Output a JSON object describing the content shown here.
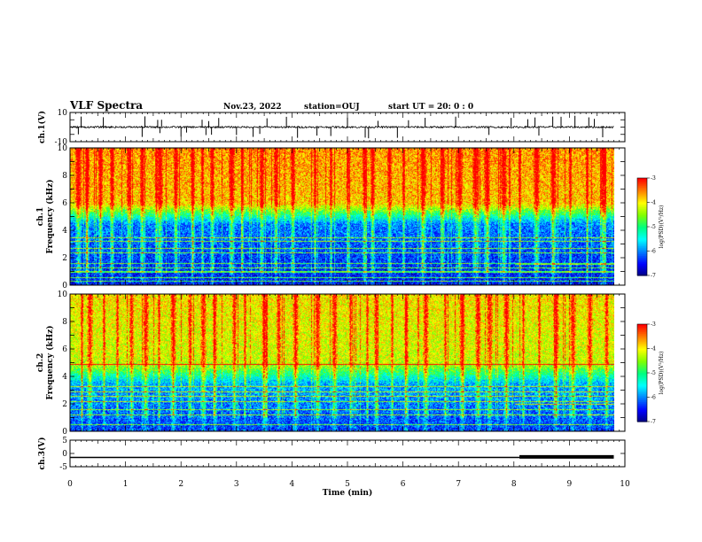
{
  "header": {
    "title": "VLF Spectra",
    "date": "Nov.23, 2022",
    "station": "station=OUJ",
    "start_ut_label": "start  UT =",
    "start_ut_value": "20: 0  : 0"
  },
  "colors": {
    "colormap": [
      "#000080",
      "#0000ff",
      "#0080ff",
      "#00ffff",
      "#00ff80",
      "#80ff00",
      "#ffff00",
      "#ff8000",
      "#ff0000",
      "#ffffff"
    ],
    "trace": "#000000"
  },
  "chart_data": [
    {
      "type": "line",
      "panel": "ch1-waveform",
      "ylabel": "ch.1(V)",
      "ylim": [
        -10,
        10
      ],
      "yticks": [
        "10",
        "-10"
      ],
      "xlim": [
        0,
        10
      ],
      "series": [
        {
          "description_units": "volts",
          "baseline": 0,
          "noise_amplitude": 1.2,
          "spikes_min": [
            0.15,
            0.2,
            0.6,
            1.3,
            1.35,
            1.58,
            1.62,
            1.65,
            2.0,
            2.1,
            2.38,
            2.45,
            2.5,
            2.55,
            2.68,
            3.0,
            3.3,
            3.42,
            3.55,
            3.9,
            4.1,
            4.45,
            4.7,
            5.0,
            5.32,
            5.38,
            5.55,
            5.9,
            6.1,
            6.4,
            6.95,
            7.55,
            7.95,
            8.25,
            8.38,
            8.45,
            8.7,
            8.85,
            9.1,
            9.35,
            9.45,
            9.6
          ],
          "spike_amplitude": 8
        }
      ]
    },
    {
      "type": "heatmap",
      "panel": "ch1-spectrogram",
      "ylabel_top": "ch.1",
      "ylabel": "Frequency  (kHz)",
      "ylim": [
        0,
        10
      ],
      "yticks": [
        "0",
        "2",
        "4",
        "6",
        "8",
        "10"
      ],
      "xlim": [
        0,
        10
      ],
      "value_units": "log(PSD)",
      "color_range": [
        -7,
        -3
      ],
      "structure": {
        "low_band_khz": [
          0,
          4.5
        ],
        "low_band_log_psd": -6.5,
        "high_band_khz": [
          6,
          10
        ],
        "high_band_log_psd": -3.8,
        "line_freqs_khz": [
          0.3,
          0.6,
          1.0,
          1.3,
          1.6,
          2.4,
          2.7,
          3.2,
          3.5
        ],
        "line_freq_after_8min_khz": 1.55,
        "burst_times_min": [
          0.15,
          0.3,
          0.55,
          0.75,
          1.05,
          1.3,
          1.55,
          1.62,
          1.9,
          2.2,
          2.38,
          2.55,
          2.9,
          3.1,
          3.45,
          3.7,
          4.0,
          4.4,
          4.7,
          5.0,
          5.3,
          5.45,
          5.75,
          6.0,
          6.35,
          6.7,
          7.0,
          7.3,
          7.5,
          7.8,
          8.1,
          8.4,
          8.7,
          9.0,
          9.3,
          9.6
        ]
      }
    },
    {
      "type": "heatmap",
      "panel": "ch2-spectrogram",
      "ylabel_top": "ch.2",
      "ylabel": "Frequency  (kHz)",
      "ylim": [
        0,
        10
      ],
      "yticks": [
        "0",
        "2",
        "4",
        "6",
        "8",
        "10"
      ],
      "xlim": [
        0,
        10
      ],
      "value_units": "log(PSD)",
      "color_range": [
        -7,
        -3
      ],
      "structure": {
        "low_band_khz": [
          0,
          3.5
        ],
        "low_band_log_psd": -6.3,
        "high_band_khz": [
          5,
          10
        ],
        "high_band_log_psd": -4.2,
        "line_freqs_khz": [
          0.5,
          1.2,
          1.6,
          2.2,
          2.6,
          2.9,
          3.3,
          4.9
        ],
        "line_freq_after_8min_khz": 2.0,
        "burst_times_min": [
          0.2,
          0.35,
          0.6,
          0.85,
          1.1,
          1.35,
          1.6,
          1.85,
          2.15,
          2.4,
          2.6,
          2.95,
          3.15,
          3.5,
          3.75,
          4.05,
          4.45,
          4.75,
          5.05,
          5.35,
          5.5,
          5.8,
          6.05,
          6.4,
          6.75,
          7.05,
          7.35,
          7.55,
          7.85,
          8.15,
          8.45,
          8.75,
          9.05,
          9.35,
          9.65
        ]
      }
    },
    {
      "type": "line",
      "panel": "ch3-waveform",
      "ylabel": "ch.3(V)",
      "ylim": [
        -5,
        5
      ],
      "yticks": [
        "5",
        "0",
        "-5"
      ],
      "xlim": [
        0,
        10
      ],
      "xlabel": "Time  (min)",
      "xticks": [
        "0",
        "1",
        "2",
        "3",
        "4",
        "5",
        "6",
        "7",
        "8",
        "9",
        "10"
      ],
      "series": [
        {
          "x": [
            0,
            8.1,
            8.1,
            9.8
          ],
          "y": [
            -1.5,
            -1.5,
            -1.3,
            -1.3
          ],
          "thick_after_min": 8.1
        }
      ]
    }
  ],
  "colorbars": [
    {
      "panel": "ch1",
      "ticks": [
        "-3",
        "-4",
        "-5",
        "-6",
        "-7"
      ],
      "label": "log(PSD)(V²/Hz)"
    },
    {
      "panel": "ch2",
      "ticks": [
        "-3",
        "-4",
        "-5",
        "-6",
        "-7"
      ],
      "label": "log(PSD)(V²/Hz)"
    }
  ]
}
